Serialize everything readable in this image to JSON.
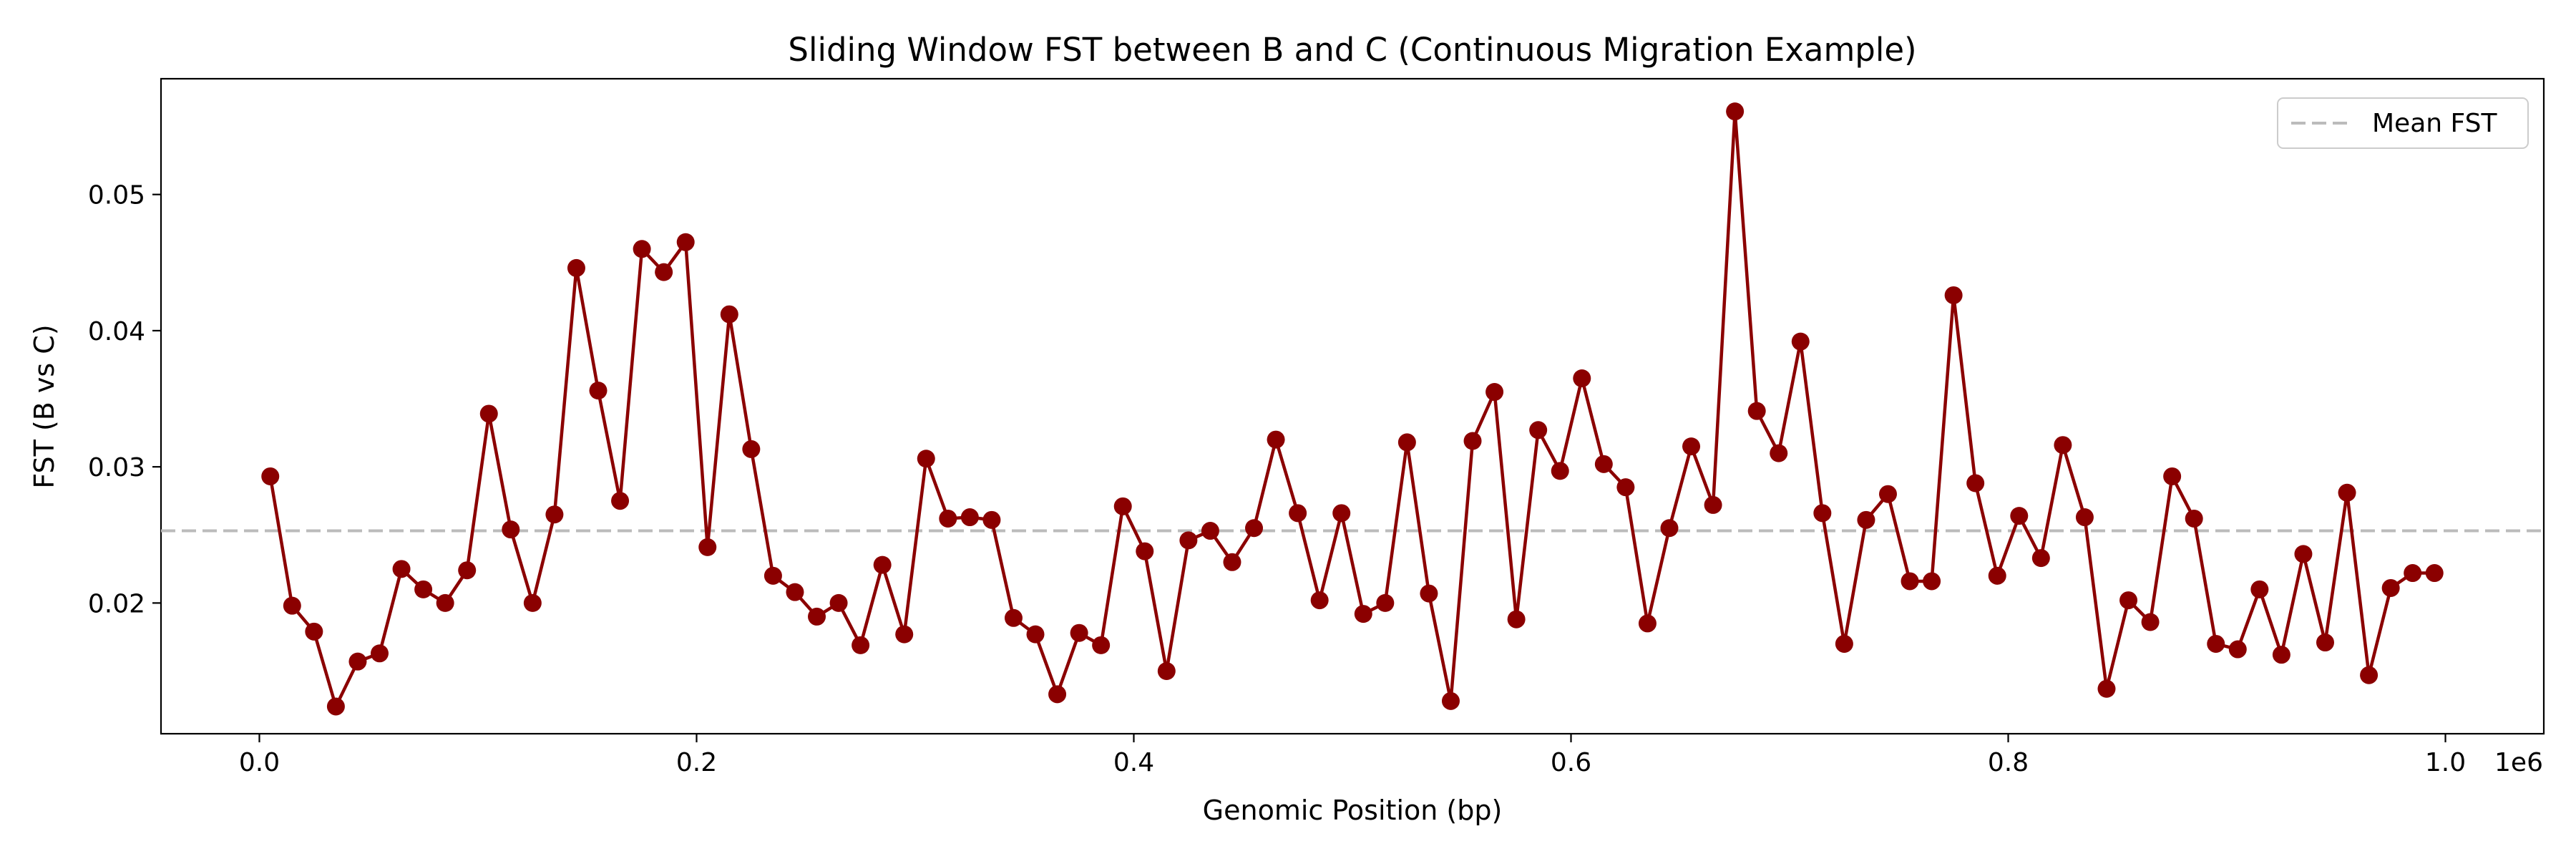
{
  "chart_data": {
    "type": "line",
    "title": "Sliding Window FST between B and C (Continuous Migration Example)",
    "xlabel": "Genomic Position (bp)",
    "ylabel": "FST (B vs C)",
    "x_offset_label": "1e6",
    "x_scale": 1000000,
    "xlim": [
      -45000,
      1045000
    ],
    "ylim": [
      0.0104,
      0.0585
    ],
    "xticks": [
      0.0,
      0.2,
      0.4,
      0.6,
      0.8,
      1.0
    ],
    "xtick_labels": [
      "0.0",
      "0.2",
      "0.4",
      "0.6",
      "0.8",
      "1.0"
    ],
    "yticks": [
      0.02,
      0.03,
      0.04,
      0.05
    ],
    "ytick_labels": [
      "0.02",
      "0.03",
      "0.04",
      "0.05"
    ],
    "grid": false,
    "legend_position": "top-right",
    "colors": {
      "series": "#8b0000",
      "mean_line": "#bbbbbb"
    },
    "mean_line": {
      "name": "Mean FST",
      "value": 0.0253
    },
    "series": [
      {
        "name": "",
        "x": [
          5000,
          15000,
          25000,
          35000,
          45000,
          55000,
          65000,
          75000,
          85000,
          95000,
          105000,
          115000,
          125000,
          135000,
          145000,
          155000,
          165000,
          175000,
          185000,
          195000,
          205000,
          215000,
          225000,
          235000,
          245000,
          255000,
          265000,
          275000,
          285000,
          295000,
          305000,
          315000,
          325000,
          335000,
          345000,
          355000,
          365000,
          375000,
          385000,
          395000,
          405000,
          415000,
          425000,
          435000,
          445000,
          455000,
          465000,
          475000,
          485000,
          495000,
          505000,
          515000,
          525000,
          535000,
          545000,
          555000,
          565000,
          575000,
          585000,
          595000,
          605000,
          615000,
          625000,
          635000,
          645000,
          655000,
          665000,
          675000,
          685000,
          695000,
          705000,
          715000,
          725000,
          735000,
          745000,
          755000,
          765000,
          775000,
          785000,
          795000,
          805000,
          815000,
          825000,
          835000,
          845000,
          855000,
          865000,
          875000,
          885000,
          895000,
          905000,
          915000,
          925000,
          935000,
          945000,
          955000,
          965000,
          975000,
          985000,
          995000
        ],
        "values": [
          0.0293,
          0.0198,
          0.0179,
          0.0124,
          0.0157,
          0.0163,
          0.0225,
          0.021,
          0.02,
          0.0224,
          0.0339,
          0.0254,
          0.02,
          0.0265,
          0.0446,
          0.0356,
          0.0275,
          0.046,
          0.0443,
          0.0465,
          0.0241,
          0.0412,
          0.0313,
          0.022,
          0.0208,
          0.019,
          0.02,
          0.0169,
          0.0228,
          0.0177,
          0.0306,
          0.0262,
          0.0263,
          0.0261,
          0.0189,
          0.0177,
          0.0133,
          0.0178,
          0.0169,
          0.0271,
          0.0238,
          0.015,
          0.0246,
          0.0253,
          0.023,
          0.0255,
          0.032,
          0.0266,
          0.0202,
          0.0266,
          0.0192,
          0.02,
          0.0318,
          0.0207,
          0.0128,
          0.0319,
          0.0355,
          0.0188,
          0.0327,
          0.0297,
          0.0365,
          0.0302,
          0.0285,
          0.0185,
          0.0255,
          0.0315,
          0.0272,
          0.0561,
          0.0341,
          0.031,
          0.0392,
          0.0266,
          0.017,
          0.0261,
          0.028,
          0.0216,
          0.0216,
          0.0426,
          0.0288,
          0.022,
          0.0264,
          0.0233,
          0.0316,
          0.0263,
          0.0137,
          0.0202,
          0.0186,
          0.0293,
          0.0262,
          0.017,
          0.0166,
          0.021,
          0.0162,
          0.0236,
          0.0171,
          0.0281,
          0.0147,
          0.0211,
          0.0222,
          0.0222
        ]
      }
    ]
  }
}
